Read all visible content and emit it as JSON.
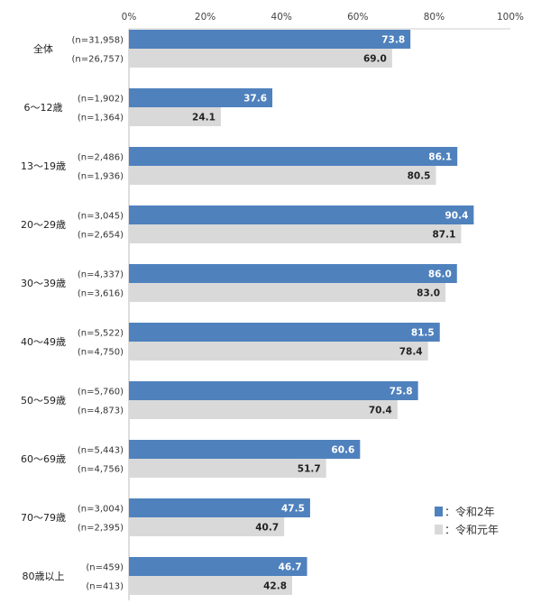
{
  "chart_data": {
    "type": "bar",
    "orientation": "horizontal",
    "xlim": [
      0,
      100
    ],
    "x_ticks": [
      "0%",
      "20%",
      "40%",
      "60%",
      "80%",
      "100%"
    ],
    "categories": [
      "全体",
      "6～12歳",
      "13～19歳",
      "20～29歳",
      "30～39歳",
      "40～49歳",
      "50～59歳",
      "60～69歳",
      "70～79歳",
      "80歳以上"
    ],
    "series": [
      {
        "name": "：令和2年",
        "color": "#4F81BD",
        "label_color": "#ffffff",
        "values": [
          73.8,
          37.6,
          86.1,
          90.4,
          86.0,
          81.5,
          75.8,
          60.6,
          47.5,
          46.7
        ],
        "value_labels": [
          "73.8",
          "37.6",
          "86.1",
          "90.4",
          "86.0",
          "81.5",
          "75.8",
          "60.6",
          "47.5",
          "46.7"
        ],
        "n": [
          "(n=31,958)",
          "(n=1,902)",
          "(n=2,486)",
          "(n=3,045)",
          "(n=4,337)",
          "(n=5,522)",
          "(n=5,760)",
          "(n=5,443)",
          "(n=3,004)",
          "(n=459)"
        ]
      },
      {
        "name": "：令和元年",
        "color": "#D9D9D9",
        "label_color": "#222222",
        "values": [
          69.0,
          24.1,
          80.5,
          87.1,
          83.0,
          78.4,
          70.4,
          51.7,
          40.7,
          42.8
        ],
        "value_labels": [
          "69.0",
          "24.1",
          "80.5",
          "87.1",
          "83.0",
          "78.4",
          "70.4",
          "51.7",
          "40.7",
          "42.8"
        ],
        "n": [
          "(n=26,757)",
          "(n=1,364)",
          "(n=1,936)",
          "(n=2,654)",
          "(n=3,616)",
          "(n=4,750)",
          "(n=4,873)",
          "(n=4,756)",
          "(n=2,395)",
          "(n=413)"
        ]
      }
    ],
    "legend_position": "right-bottom",
    "grid": false
  }
}
